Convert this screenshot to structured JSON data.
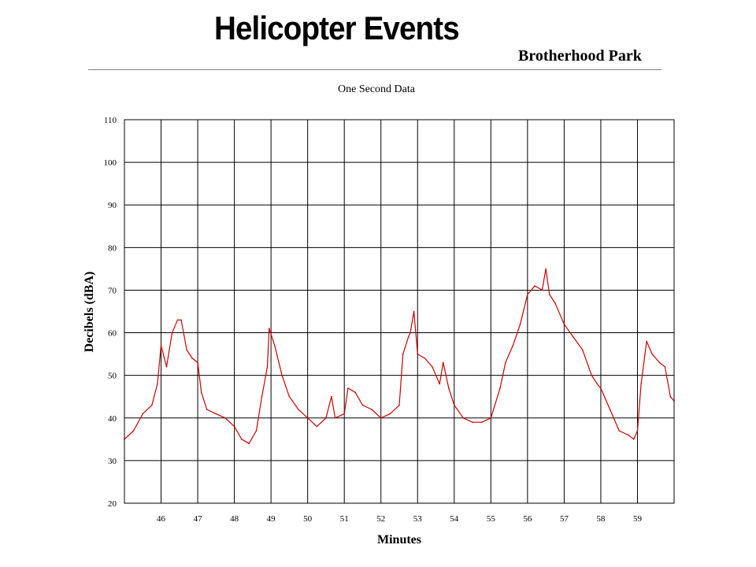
{
  "header": {
    "title": "Helicopter Events",
    "subtitle": "Brotherhood Park"
  },
  "colors": {
    "line": "#cc0000",
    "grid": "#000000",
    "background": "#ffffff"
  },
  "chart_data": {
    "type": "line",
    "title": "One Second Data",
    "xlabel": "Minutes",
    "ylabel": "Decibels (dBA)",
    "xlim": [
      45,
      60
    ],
    "ylim": [
      20,
      110
    ],
    "xticks": [
      46,
      47,
      48,
      49,
      50,
      51,
      52,
      53,
      54,
      55,
      56,
      57,
      58,
      59
    ],
    "yticks": [
      20,
      30,
      40,
      50,
      60,
      70,
      80,
      90,
      100,
      110
    ],
    "grid": true,
    "legend": "none",
    "series": [
      {
        "x": [
          45.0,
          45.25,
          45.5,
          45.75,
          45.9,
          46.0,
          46.15,
          46.3,
          46.45,
          46.55,
          46.7,
          46.85,
          47.0,
          47.1,
          47.25,
          47.5,
          47.75,
          48.0,
          48.2,
          48.4,
          48.6,
          48.75,
          48.9,
          48.95,
          49.1,
          49.3,
          49.5,
          49.75,
          50.0,
          50.25,
          50.5,
          50.65,
          50.75,
          51.0,
          51.1,
          51.3,
          51.5,
          51.75,
          52.0,
          52.25,
          52.5,
          52.6,
          52.75,
          52.8,
          52.9,
          53.0,
          53.2,
          53.4,
          53.6,
          53.7,
          53.85,
          54.0,
          54.25,
          54.5,
          54.75,
          55.0,
          55.25,
          55.4,
          55.6,
          55.8,
          56.0,
          56.2,
          56.4,
          56.5,
          56.6,
          56.75,
          57.0,
          57.25,
          57.5,
          57.75,
          57.9,
          58.0,
          58.25,
          58.5,
          58.75,
          58.9,
          59.0,
          59.1,
          59.25,
          59.4,
          59.6,
          59.75,
          59.9,
          60.0
        ],
        "y": [
          35,
          37,
          41,
          43,
          48,
          57,
          52,
          60,
          63,
          63,
          56,
          54,
          53,
          46,
          42,
          41,
          40,
          38,
          35,
          34,
          37,
          45,
          52,
          61,
          57,
          50,
          45,
          42,
          40,
          38,
          40,
          45,
          40,
          41,
          47,
          46,
          43,
          42,
          40,
          41,
          43,
          55,
          59,
          60,
          65,
          55,
          54,
          52,
          48,
          53,
          47,
          43,
          40,
          39,
          39,
          40,
          47,
          53,
          57,
          62,
          69,
          71,
          70,
          75,
          69,
          67,
          62,
          59,
          56,
          50,
          48,
          47,
          42,
          37,
          36,
          35,
          37,
          48,
          58,
          55,
          53,
          52,
          45,
          44
        ]
      }
    ]
  }
}
